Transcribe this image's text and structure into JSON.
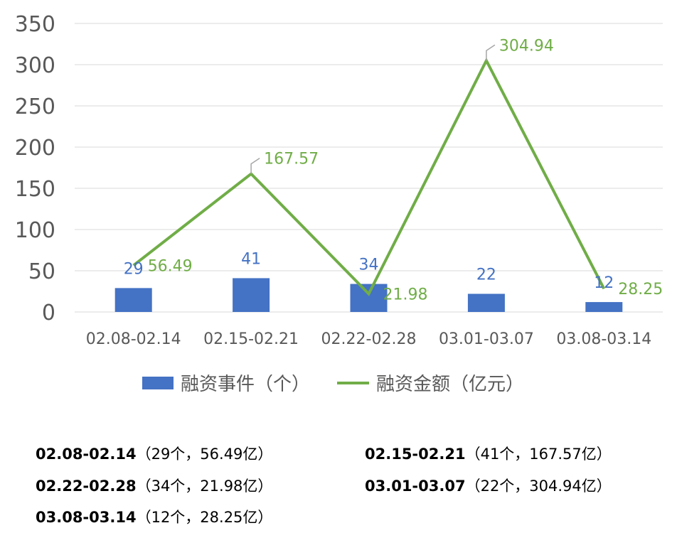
{
  "chart_data": {
    "type": "bar",
    "categories": [
      "02.08-02.14",
      "02.15-02.21",
      "02.22-02.28",
      "03.01-03.07",
      "03.08-03.14"
    ],
    "series": [
      {
        "name": "融资事件（个）",
        "type": "bar",
        "color": "#4472c4",
        "values": [
          29,
          41,
          34,
          22,
          12
        ]
      },
      {
        "name": "融资金额（亿元）",
        "type": "line",
        "color": "#70ad47",
        "values": [
          56.49,
          167.57,
          21.98,
          304.94,
          28.25
        ]
      }
    ],
    "ylim": [
      0,
      350
    ],
    "yticks": [
      0,
      50,
      100,
      150,
      200,
      250,
      300,
      350
    ],
    "grid": true,
    "legend": "bottom"
  },
  "summary": [
    {
      "period": "02.08-02.14",
      "detail": "（29个，56.49亿）"
    },
    {
      "period": "02.15-02.21",
      "detail": "（41个，167.57亿）"
    },
    {
      "period": "02.22-02.28",
      "detail": "（34个，21.98亿）"
    },
    {
      "period": "03.01-03.07",
      "detail": "（22个，304.94亿）"
    },
    {
      "period": "03.08-03.14",
      "detail": "（12个，28.25亿）"
    }
  ]
}
